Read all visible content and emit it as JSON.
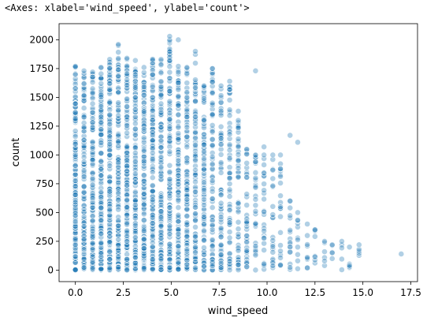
{
  "header": {
    "repr": "<Axes: xlabel='wind_speed', ylabel='count'>"
  },
  "chart_data": {
    "type": "scatter",
    "title": "",
    "xlabel": "wind_speed",
    "ylabel": "count",
    "xlim": [
      -0.85,
      17.85
    ],
    "ylim": [
      -100,
      2140
    ],
    "xticks": [
      0.0,
      2.5,
      5.0,
      7.5,
      10.0,
      12.5,
      15.0,
      17.5
    ],
    "xtick_labels": [
      "0.0",
      "2.5",
      "5.0",
      "7.5",
      "10.0",
      "12.5",
      "15.0",
      "17.5"
    ],
    "yticks": [
      0,
      250,
      500,
      750,
      1000,
      1250,
      1500,
      1750,
      2000
    ],
    "ytick_labels": [
      "0",
      "250",
      "500",
      "750",
      "1000",
      "1250",
      "1500",
      "1750",
      "2000"
    ],
    "grid": false,
    "legend": "none",
    "marker_color": "#1f77b4",
    "marker_alpha": 0.35,
    "columns": [
      {
        "x": 0.0,
        "max": 1770,
        "n": 160
      },
      {
        "x": 0.45,
        "max": 1730,
        "n": 120
      },
      {
        "x": 0.9,
        "max": 1720,
        "n": 140
      },
      {
        "x": 1.34,
        "max": 1760,
        "n": 150
      },
      {
        "x": 1.79,
        "max": 1830,
        "n": 150
      },
      {
        "x": 2.24,
        "max": 1950,
        "n": 150
      },
      {
        "x": 2.69,
        "max": 1840,
        "n": 150
      },
      {
        "x": 3.13,
        "max": 1820,
        "n": 140
      },
      {
        "x": 3.58,
        "max": 1760,
        "n": 140
      },
      {
        "x": 4.03,
        "max": 1830,
        "n": 140
      },
      {
        "x": 4.47,
        "max": 1830,
        "n": 130
      },
      {
        "x": 4.92,
        "max": 2000,
        "n": 130
      },
      {
        "x": 5.37,
        "max": 1770,
        "n": 120
      },
      {
        "x": 5.82,
        "max": 1760,
        "n": 110
      },
      {
        "x": 6.26,
        "max": 1900,
        "n": 100
      },
      {
        "x": 6.71,
        "max": 1600,
        "n": 90
      },
      {
        "x": 7.15,
        "max": 1750,
        "n": 80
      },
      {
        "x": 7.6,
        "max": 1600,
        "n": 70
      },
      {
        "x": 8.05,
        "max": 1640,
        "n": 60
      },
      {
        "x": 8.5,
        "max": 1300,
        "n": 50
      },
      {
        "x": 8.94,
        "max": 1050,
        "n": 40
      },
      {
        "x": 9.4,
        "max": 1000,
        "n": 30
      },
      {
        "x": 9.84,
        "max": 1000,
        "n": 25
      },
      {
        "x": 10.3,
        "max": 1000,
        "n": 22
      },
      {
        "x": 10.7,
        "max": 1000,
        "n": 20
      },
      {
        "x": 11.2,
        "max": 600,
        "n": 15
      },
      {
        "x": 11.6,
        "max": 500,
        "n": 10
      },
      {
        "x": 12.1,
        "max": 400,
        "n": 8
      },
      {
        "x": 12.5,
        "max": 350,
        "n": 6
      },
      {
        "x": 13.0,
        "max": 250,
        "n": 4
      },
      {
        "x": 13.4,
        "max": 220,
        "n": 4
      },
      {
        "x": 13.9,
        "max": 250,
        "n": 4
      },
      {
        "x": 14.3,
        "max": 200,
        "n": 3
      },
      {
        "x": 14.8,
        "max": 180,
        "n": 3
      }
    ],
    "outliers": [
      {
        "x": 2.24,
        "y": 1960
      },
      {
        "x": 4.92,
        "y": 2030
      },
      {
        "x": 5.37,
        "y": 2000
      },
      {
        "x": 9.4,
        "y": 1730
      },
      {
        "x": 8.05,
        "y": 1570
      },
      {
        "x": 8.5,
        "y": 1380
      },
      {
        "x": 9.84,
        "y": 1070
      },
      {
        "x": 10.7,
        "y": 880
      },
      {
        "x": 11.2,
        "y": 1170
      },
      {
        "x": 11.6,
        "y": 1110
      },
      {
        "x": 11.2,
        "y": 600
      },
      {
        "x": 12.5,
        "y": 350
      },
      {
        "x": 13.0,
        "y": 160
      },
      {
        "x": 14.3,
        "y": 40
      },
      {
        "x": 14.8,
        "y": 220
      },
      {
        "x": 17.0,
        "y": 140
      }
    ]
  }
}
